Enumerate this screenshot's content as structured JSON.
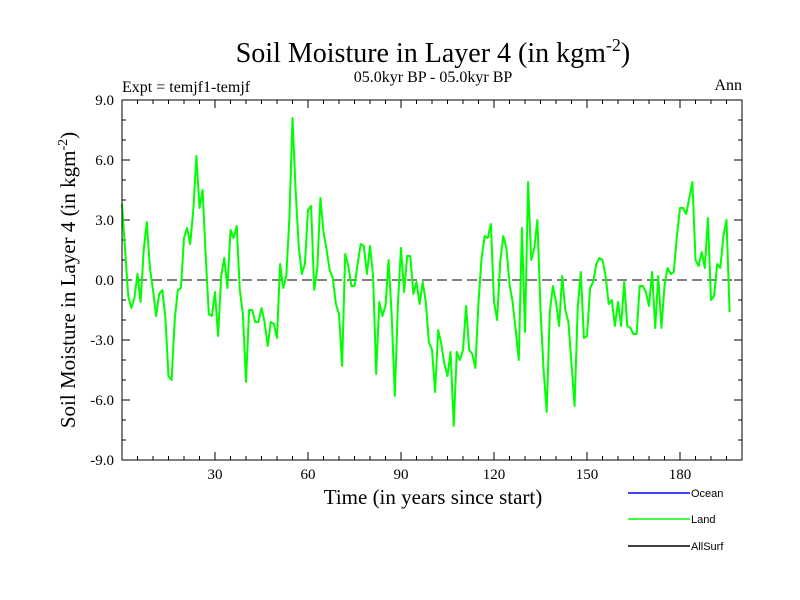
{
  "header": {
    "title_main": "Soil Moisture in Layer 4 (in kgm",
    "title_exp": "-2",
    "title_close": ")",
    "subtitle": "05.0kyr BP - 05.0kyr BP",
    "left_label": "Expt = temjf1-temjf",
    "right_label": "Ann"
  },
  "chart_data": {
    "type": "line",
    "title": "Soil Moisture in Layer 4 (in kgm-2)",
    "subtitle": "05.0kyr BP - 05.0kyr BP",
    "xlabel": "Time (in years since start)",
    "ylabel": "Soil Moisture in Layer 4 (in kgm-2)",
    "ylabel_main": "Soil Moisture in Layer 4 (in kgm",
    "ylabel_exp": "-2",
    "ylabel_close": ")",
    "xlim": [
      0,
      200
    ],
    "ylim": [
      -9,
      9
    ],
    "x_ticks": [
      30,
      60,
      90,
      120,
      150,
      180
    ],
    "x_tick_labels": [
      "30",
      "60",
      "90",
      "120",
      "150",
      "180"
    ],
    "y_ticks": [
      -9,
      -6,
      -3,
      0,
      3,
      6,
      9
    ],
    "y_tick_labels": [
      "-9.0",
      "-6.0",
      "-3.0",
      "0.0",
      "3.0",
      "6.0",
      "9.0"
    ],
    "zero_line": 0,
    "legend_position": "bottom-right",
    "series": [
      {
        "name": "Ocean",
        "color": "#0000ff",
        "values": []
      },
      {
        "name": "Land",
        "color": "#00ff00",
        "x_start": 0,
        "x_step": 1,
        "values": [
          3.8,
          1.5,
          -0.8,
          -1.4,
          -0.9,
          0.3,
          -1.1,
          1.5,
          2.9,
          0.6,
          -0.5,
          -1.8,
          -0.7,
          -0.5,
          -1.9,
          -4.8,
          -5.0,
          -2.0,
          -0.5,
          -0.4,
          2.1,
          2.6,
          1.8,
          3.5,
          6.2,
          3.6,
          4.5,
          1.2,
          -1.7,
          -1.8,
          -0.6,
          -2.8,
          0.2,
          1.1,
          -0.4,
          2.5,
          2.1,
          2.7,
          -0.5,
          -1.7,
          -5.1,
          -1.5,
          -1.5,
          -2.1,
          -2.1,
          -1.4,
          -2.1,
          -3.3,
          -2.1,
          -2.2,
          -2.9,
          0.8,
          -0.4,
          0.2,
          3.1,
          8.1,
          4.5,
          1.7,
          0.3,
          0.8,
          3.5,
          3.7,
          -0.5,
          0.6,
          4.1,
          2.4,
          1.5,
          0.5,
          0.1,
          -1.2,
          -1.7,
          -4.3,
          1.3,
          0.7,
          -0.3,
          -0.3,
          0.8,
          1.8,
          1.7,
          0.3,
          1.7,
          0.2,
          -4.7,
          -1.1,
          -1.8,
          -1.3,
          1.0,
          -1.8,
          -5.8,
          -1.2,
          1.6,
          -0.6,
          1.2,
          1.2,
          -0.7,
          -0.1,
          -1.2,
          -0.1,
          -1.1,
          -3.1,
          -3.5,
          -5.6,
          -2.5,
          -3.2,
          -4.2,
          -4.8,
          -3.6,
          -7.3,
          -3.6,
          -4.0,
          -3.5,
          -1.3,
          -3.5,
          -3.7,
          -4.4,
          -1.1,
          1.1,
          2.2,
          2.1,
          2.8,
          -1.1,
          -2.0,
          0.9,
          2.2,
          1.6,
          -0.2,
          -1.1,
          -2.5,
          -4.0,
          2.6,
          -2.6,
          4.9,
          1.0,
          1.6,
          3.0,
          -1.5,
          -4.5,
          -6.6,
          -1.6,
          -0.3,
          -1.1,
          -2.3,
          0.2,
          -1.5,
          -2.1,
          -4.2,
          -6.3,
          -1.4,
          0.4,
          -2.9,
          -2.8,
          -0.4,
          -0.1,
          0.8,
          1.1,
          1.0,
          0.2,
          -1.2,
          -1.0,
          -2.3,
          -1.1,
          -2.3,
          -0.1,
          -2.3,
          -2.4,
          -2.7,
          -2.7,
          -0.3,
          -0.3,
          -0.6,
          -1.3,
          0.4,
          -2.4,
          0.2,
          -2.4,
          -0.3,
          0.6,
          0.3,
          0.4,
          2.2,
          3.6,
          3.6,
          3.3,
          4.1,
          4.9,
          1.0,
          0.7,
          1.4,
          0.6,
          3.1,
          -1.0,
          -0.8,
          0.8,
          0.6,
          2.2,
          3.0,
          -1.6
        ]
      },
      {
        "name": "AllSurf",
        "color": "#000000",
        "values": []
      }
    ]
  }
}
